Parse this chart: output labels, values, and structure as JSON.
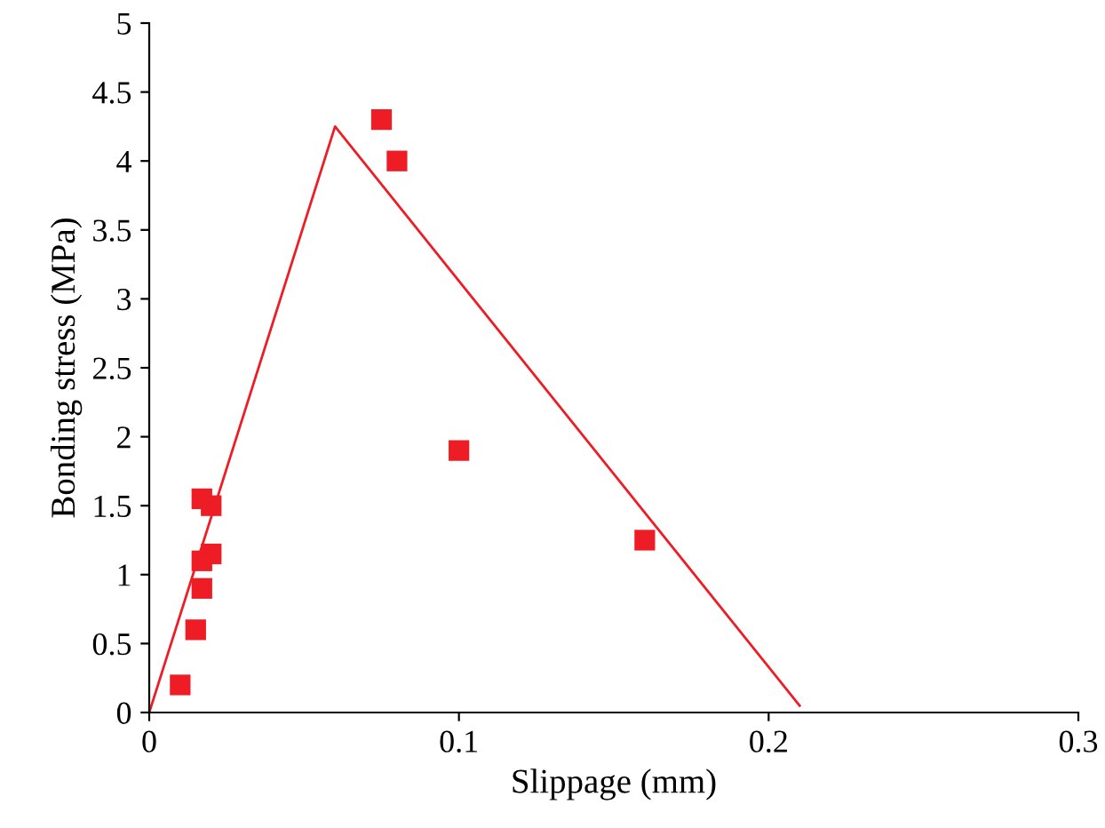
{
  "chart_data": {
    "type": "scatter",
    "xlabel": "Slippage (mm)",
    "ylabel": "Bonding stress (MPa)",
    "series": [
      {
        "color": "#ee1c25",
        "marker": "square",
        "x": [
          0.01,
          0.015,
          0.017,
          0.017,
          0.02,
          0.02,
          0.017,
          0.075,
          0.08,
          0.1,
          0.16
        ],
        "values": [
          0.2,
          0.6,
          0.9,
          1.1,
          1.15,
          1.5,
          1.55,
          4.3,
          4.0,
          1.9,
          1.25
        ]
      },
      {
        "type": "line",
        "color": "#ee1c25",
        "marker": "none",
        "x": [
          0,
          0.06,
          0.21
        ],
        "values": [
          0,
          4.25,
          0.05
        ]
      }
    ],
    "xlim": [
      0,
      0.3
    ],
    "xticks": [
      0,
      0.1,
      0.2,
      0.3
    ],
    "ylim": [
      0,
      5
    ],
    "yticks": [
      0,
      0.5,
      1,
      1.5,
      2,
      2.5,
      3,
      3.5,
      4,
      4.5,
      5
    ],
    "grid": false
  }
}
